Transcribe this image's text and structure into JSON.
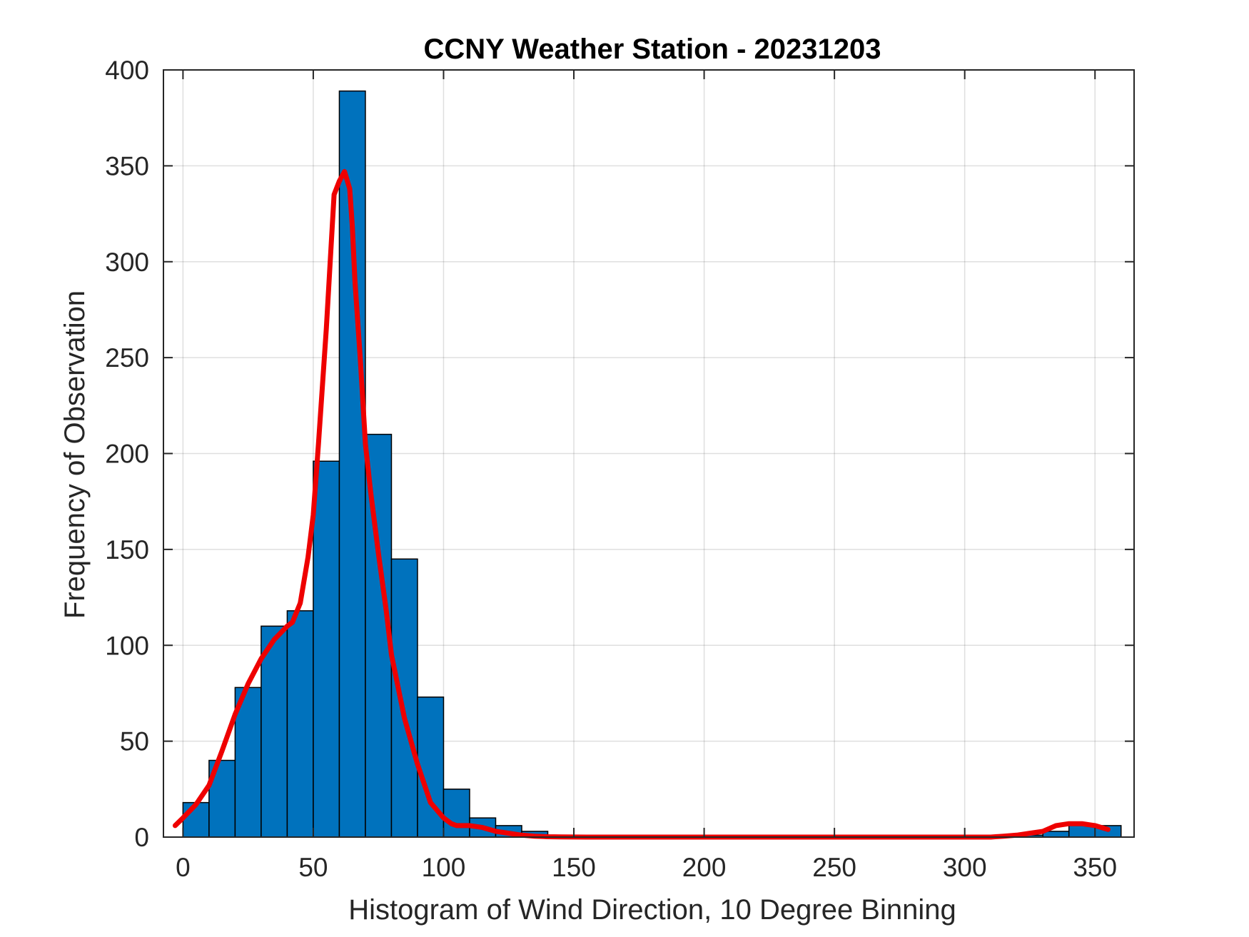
{
  "chart_data": {
    "type": "bar",
    "title": "CCNY Weather Station - 20231203",
    "xlabel": "Histogram of Wind Direction, 10 Degree Binning",
    "ylabel": "Frequency of Observation",
    "xlim": [
      -7.5,
      365
    ],
    "ylim": [
      0,
      400
    ],
    "xticks": [
      0,
      50,
      100,
      150,
      200,
      250,
      300,
      350
    ],
    "yticks": [
      0,
      50,
      100,
      150,
      200,
      250,
      300,
      350,
      400
    ],
    "grid": true,
    "bin_width": 10,
    "bins": [
      {
        "x0": 0,
        "x1": 10,
        "count": 18
      },
      {
        "x0": 10,
        "x1": 20,
        "count": 40
      },
      {
        "x0": 20,
        "x1": 30,
        "count": 78
      },
      {
        "x0": 30,
        "x1": 40,
        "count": 110
      },
      {
        "x0": 40,
        "x1": 50,
        "count": 118
      },
      {
        "x0": 50,
        "x1": 60,
        "count": 196
      },
      {
        "x0": 60,
        "x1": 70,
        "count": 389
      },
      {
        "x0": 70,
        "x1": 80,
        "count": 210
      },
      {
        "x0": 80,
        "x1": 90,
        "count": 145
      },
      {
        "x0": 90,
        "x1": 100,
        "count": 73
      },
      {
        "x0": 100,
        "x1": 110,
        "count": 25
      },
      {
        "x0": 110,
        "x1": 120,
        "count": 10
      },
      {
        "x0": 120,
        "x1": 130,
        "count": 6
      },
      {
        "x0": 130,
        "x1": 140,
        "count": 3
      },
      {
        "x0": 140,
        "x1": 150,
        "count": 1
      },
      {
        "x0": 150,
        "x1": 160,
        "count": 1
      },
      {
        "x0": 160,
        "x1": 170,
        "count": 1
      },
      {
        "x0": 170,
        "x1": 180,
        "count": 1
      },
      {
        "x0": 180,
        "x1": 190,
        "count": 1
      },
      {
        "x0": 190,
        "x1": 200,
        "count": 1
      },
      {
        "x0": 200,
        "x1": 210,
        "count": 1
      },
      {
        "x0": 210,
        "x1": 220,
        "count": 1
      },
      {
        "x0": 220,
        "x1": 230,
        "count": 1
      },
      {
        "x0": 230,
        "x1": 240,
        "count": 1
      },
      {
        "x0": 240,
        "x1": 250,
        "count": 1
      },
      {
        "x0": 250,
        "x1": 260,
        "count": 1
      },
      {
        "x0": 260,
        "x1": 270,
        "count": 1
      },
      {
        "x0": 270,
        "x1": 280,
        "count": 1
      },
      {
        "x0": 280,
        "x1": 290,
        "count": 1
      },
      {
        "x0": 290,
        "x1": 300,
        "count": 1
      },
      {
        "x0": 300,
        "x1": 310,
        "count": 1
      },
      {
        "x0": 310,
        "x1": 320,
        "count": 1
      },
      {
        "x0": 320,
        "x1": 330,
        "count": 1
      },
      {
        "x0": 330,
        "x1": 340,
        "count": 3
      },
      {
        "x0": 340,
        "x1": 350,
        "count": 7
      },
      {
        "x0": 350,
        "x1": 360,
        "count": 6
      }
    ],
    "density_curve": {
      "x": [
        -3,
        0,
        5,
        10,
        15,
        20,
        25,
        30,
        35,
        40,
        42,
        45,
        48,
        50,
        52,
        55,
        58,
        60,
        62,
        64,
        65,
        66,
        68,
        70,
        72,
        75,
        78,
        80,
        85,
        90,
        95,
        100,
        103,
        105,
        110,
        115,
        120,
        125,
        130,
        135,
        140,
        145,
        150,
        155,
        160,
        200,
        250,
        300,
        310,
        315,
        320,
        325,
        330,
        335,
        340,
        345,
        350,
        355
      ],
      "y": [
        6,
        10,
        17,
        27,
        45,
        64,
        80,
        93,
        103,
        110,
        112,
        122,
        146,
        168,
        205,
        265,
        335,
        342,
        347,
        338,
        318,
        290,
        250,
        205,
        180,
        148,
        118,
        95,
        62,
        38,
        18,
        10,
        7,
        6,
        6,
        5,
        3,
        2,
        1,
        0.5,
        0.2,
        0.1,
        0.05,
        0,
        0,
        0,
        0,
        0,
        0,
        0.5,
        1,
        2,
        3,
        6,
        7,
        7,
        6,
        4
      ]
    },
    "colors": {
      "bars": "#0072BD",
      "bar_edges": "#000000",
      "curve": "#EE0000",
      "axes": "#262626"
    }
  }
}
